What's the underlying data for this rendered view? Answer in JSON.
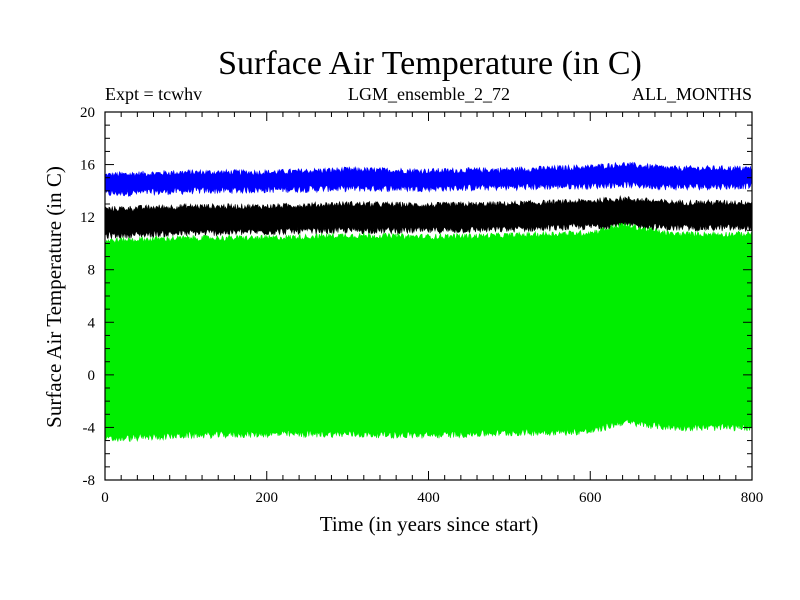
{
  "chart_data": {
    "type": "area",
    "title": "Surface Air Temperature (in C)",
    "subtitle_left": "Expt = tcwhv",
    "subtitle_center": "LGM_ensemble_2_72",
    "subtitle_right": "ALL_MONTHS",
    "xlabel": "Time (in years since start)",
    "ylabel": "Surface Air Temperature (in C)",
    "xlim": [
      0,
      800
    ],
    "ylim": [
      -8,
      20
    ],
    "xticks": [
      0,
      200,
      400,
      600,
      800
    ],
    "yticks": [
      -8,
      -4,
      0,
      4,
      8,
      12,
      16,
      20
    ],
    "series": [
      {
        "name": "blue band",
        "color": "#0000ff",
        "x": [
          0,
          100,
          200,
          300,
          400,
          500,
          600,
          640,
          700,
          800
        ],
        "lower": [
          13.8,
          14.0,
          14.1,
          14.2,
          14.2,
          14.3,
          14.4,
          14.5,
          14.3,
          14.4
        ],
        "upper": [
          15.2,
          15.4,
          15.4,
          15.6,
          15.5,
          15.6,
          15.8,
          16.0,
          15.7,
          15.7
        ]
      },
      {
        "name": "black band",
        "color": "#000000",
        "x": [
          0,
          100,
          200,
          300,
          400,
          500,
          600,
          640,
          700,
          800
        ],
        "lower": [
          10.6,
          10.8,
          10.9,
          11.0,
          11.0,
          11.1,
          11.3,
          11.4,
          11.2,
          11.2
        ],
        "upper": [
          12.6,
          12.8,
          12.8,
          13.0,
          12.9,
          13.0,
          13.2,
          13.4,
          13.1,
          13.1
        ]
      },
      {
        "name": "green band",
        "color": "#00ee00",
        "x": [
          0,
          100,
          200,
          300,
          400,
          500,
          600,
          640,
          700,
          800
        ],
        "lower": [
          -4.9,
          -4.6,
          -4.5,
          -4.5,
          -4.6,
          -4.4,
          -4.3,
          -3.6,
          -4.0,
          -4.0
        ],
        "upper": [
          10.2,
          10.4,
          10.4,
          10.6,
          10.5,
          10.6,
          10.8,
          11.4,
          10.7,
          10.7
        ]
      }
    ]
  }
}
